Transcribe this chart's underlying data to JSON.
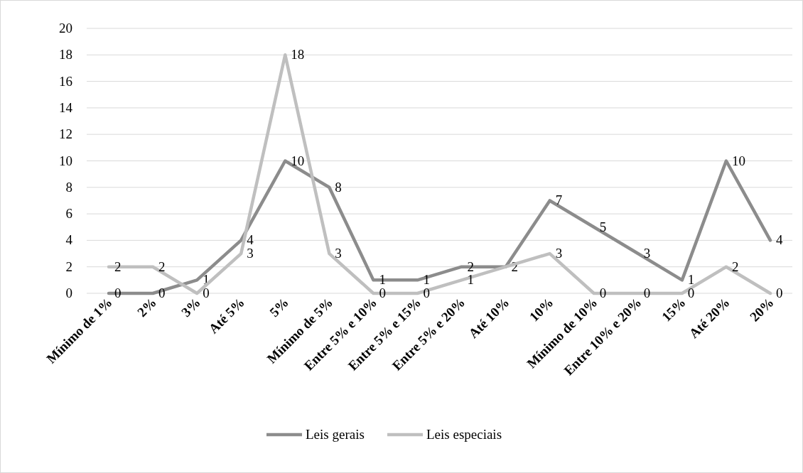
{
  "chart_data": {
    "type": "line",
    "categories": [
      "Mínimo de 1%",
      "2%",
      "3%",
      "Até 5%",
      "5%",
      "Mínimo de 5%",
      "Entre 5% e 10%",
      "Entre 5% e 15%",
      "Entre 5% e 20%",
      "Até 10%",
      "10%",
      "Mínimo de 10%",
      "Entre 10% e 20%",
      "15%",
      "Até 20%",
      "20%"
    ],
    "series": [
      {
        "name": "Leis gerais",
        "color": "#8c8c8c",
        "values": [
          0,
          0,
          1,
          4,
          10,
          8,
          1,
          1,
          2,
          2,
          7,
          5,
          3,
          1,
          10,
          4
        ]
      },
      {
        "name": "Leis especiais",
        "color": "#bfbfbf",
        "values": [
          2,
          2,
          0,
          3,
          18,
          3,
          0,
          0,
          1,
          2,
          3,
          0,
          0,
          0,
          2,
          0
        ],
        "value_labels": [
          "2",
          "2",
          "0",
          "3",
          "18",
          "3",
          "0",
          "0",
          "1",
          null,
          "3",
          "0",
          "0",
          "0",
          "2",
          "0"
        ]
      }
    ],
    "ylim": [
      0,
      20
    ],
    "yticks": [
      0,
      2,
      4,
      6,
      8,
      10,
      12,
      14,
      16,
      18,
      20
    ],
    "grid": "y",
    "legend": "bottom",
    "data_labels": true,
    "marker": "none",
    "line_style": "solid"
  }
}
